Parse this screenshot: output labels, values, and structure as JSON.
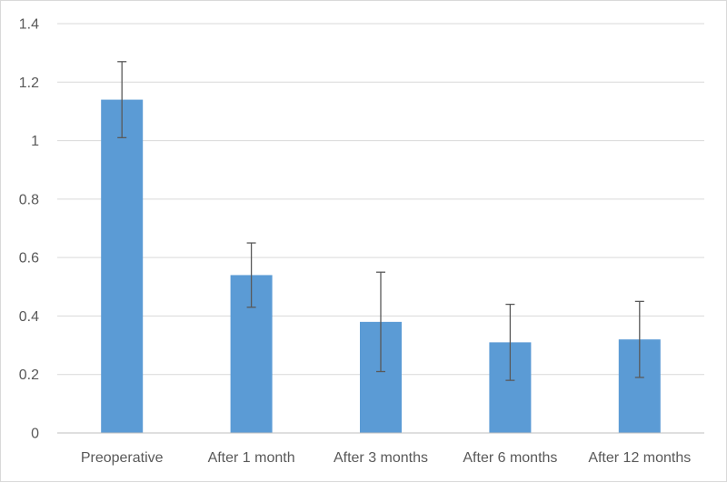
{
  "chart_data": {
    "type": "bar",
    "title": "",
    "xlabel": "",
    "ylabel": "",
    "categories": [
      "Preoperative",
      "After 1 month",
      "After 3 months",
      "After 6 months",
      "After 12 months"
    ],
    "values": [
      1.14,
      0.54,
      0.38,
      0.31,
      0.32
    ],
    "error_low": [
      1.01,
      0.43,
      0.21,
      0.18,
      0.19
    ],
    "error_high": [
      1.27,
      0.65,
      0.55,
      0.44,
      0.45
    ],
    "ylim": [
      0,
      1.4
    ],
    "yticks": [
      "0",
      "0.2",
      "0.4",
      "0.6",
      "0.8",
      "1",
      "1.2",
      "1.4"
    ],
    "grid": true,
    "legend": "none",
    "colors": {
      "bar": "#5B9BD5",
      "error_bar": "#595959",
      "grid": "#d9d9d9",
      "axis": "#bfbfbf",
      "text": "#595959"
    }
  }
}
